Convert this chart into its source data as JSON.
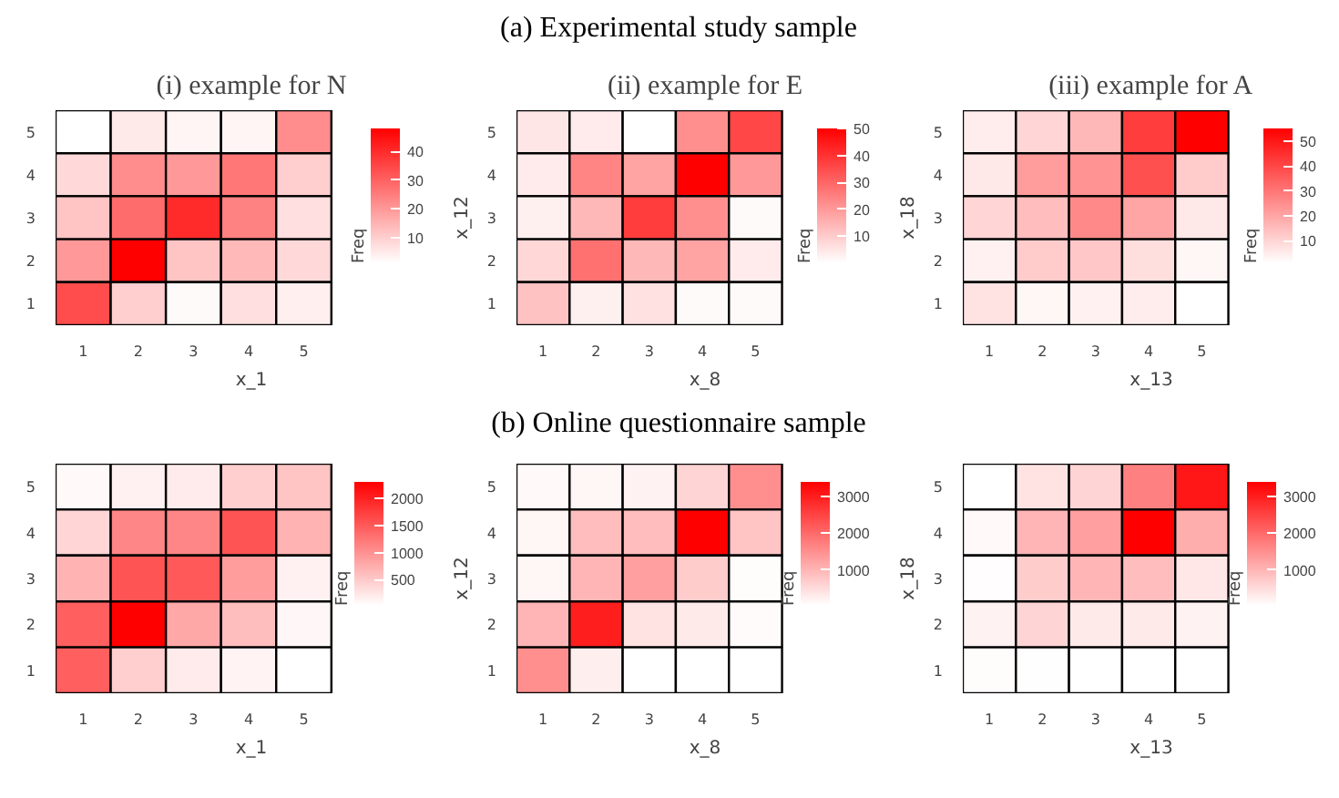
{
  "chart_data": [
    {
      "type": "heatmap",
      "title": "(i) example for N",
      "annotations": [
        "(a) Experimental study sample"
      ],
      "xlabel": "x_1",
      "clabel": "Freq",
      "categories": [
        "1",
        "2",
        "3",
        "4",
        "5"
      ],
      "y_categories": [
        "5",
        "4",
        "3",
        "2",
        "1"
      ],
      "cells": [
        [
          1,
          5,
          3,
          3,
          22
        ],
        [
          8,
          22,
          20,
          26,
          10
        ],
        [
          12,
          28,
          40,
          24,
          7
        ],
        [
          20,
          48,
          12,
          14,
          8
        ],
        [
          34,
          10,
          2,
          7,
          4
        ]
      ],
      "clim": [
        1,
        48
      ],
      "cticks": [
        10,
        20,
        30,
        40
      ]
    },
    {
      "type": "heatmap",
      "title": "(ii) example for E",
      "xlabel": "x_8",
      "ylabel": "x_12",
      "clabel": "Freq",
      "categories": [
        "1",
        "2",
        "3",
        "4",
        "5"
      ],
      "y_categories": [
        "5",
        "4",
        "3",
        "2",
        "1"
      ],
      "cells": [
        [
          5,
          4,
          0,
          22,
          36
        ],
        [
          4,
          24,
          18,
          50,
          20
        ],
        [
          3,
          14,
          38,
          22,
          1
        ],
        [
          8,
          28,
          14,
          18,
          4
        ],
        [
          12,
          3,
          6,
          1,
          1
        ]
      ],
      "clim": [
        0,
        50
      ],
      "cticks": [
        10,
        20,
        30,
        40,
        50
      ]
    },
    {
      "type": "heatmap",
      "title": "(iii) example for A",
      "xlabel": "x_13",
      "ylabel": "x_18",
      "clabel": "Freq",
      "categories": [
        "1",
        "2",
        "3",
        "4",
        "5"
      ],
      "y_categories": [
        "5",
        "4",
        "3",
        "2",
        "1"
      ],
      "cells": [
        [
          5,
          10,
          16,
          42,
          55
        ],
        [
          6,
          22,
          24,
          38,
          12
        ],
        [
          10,
          15,
          26,
          20,
          6
        ],
        [
          4,
          12,
          13,
          8,
          3
        ],
        [
          7,
          3,
          4,
          5,
          1
        ]
      ],
      "clim": [
        1,
        55
      ],
      "cticks": [
        10,
        20,
        30,
        40,
        50
      ]
    },
    {
      "type": "heatmap",
      "annotations": [
        "(b) Online questionnaire sample"
      ],
      "xlabel": "x_1",
      "clabel": "Freq",
      "categories": [
        "1",
        "2",
        "3",
        "4",
        "5"
      ],
      "y_categories": [
        "5",
        "4",
        "3",
        "2",
        "1"
      ],
      "cells": [
        [
          80,
          150,
          200,
          450,
          550
        ],
        [
          400,
          1100,
          1100,
          1550,
          700
        ],
        [
          700,
          1550,
          1500,
          900,
          150
        ],
        [
          1450,
          2300,
          800,
          600,
          100
        ],
        [
          1450,
          450,
          200,
          130,
          20
        ]
      ],
      "clim": [
        20,
        2300
      ],
      "cticks": [
        500,
        1000,
        1500,
        2000
      ]
    },
    {
      "type": "heatmap",
      "xlabel": "x_8",
      "ylabel": "x_12",
      "clabel": "Freq",
      "categories": [
        "1",
        "2",
        "3",
        "4",
        "5"
      ],
      "y_categories": [
        "5",
        "4",
        "3",
        "2",
        "1"
      ],
      "cells": [
        [
          100,
          150,
          200,
          600,
          1500
        ],
        [
          150,
          900,
          900,
          3400,
          800
        ],
        [
          150,
          1000,
          1300,
          700,
          60
        ],
        [
          1000,
          3000,
          400,
          300,
          80
        ],
        [
          1500,
          250,
          30,
          20,
          20
        ]
      ],
      "clim": [
        20,
        3400
      ],
      "cticks": [
        1000,
        2000,
        3000
      ]
    },
    {
      "type": "heatmap",
      "xlabel": "x_13",
      "ylabel": "x_18",
      "clabel": "Freq",
      "categories": [
        "1",
        "2",
        "3",
        "4",
        "5"
      ],
      "y_categories": [
        "5",
        "4",
        "3",
        "2",
        "1"
      ],
      "cells": [
        [
          30,
          400,
          600,
          1700,
          3100
        ],
        [
          100,
          1000,
          1300,
          3400,
          1100
        ],
        [
          50,
          700,
          1000,
          900,
          350
        ],
        [
          200,
          600,
          300,
          300,
          200
        ],
        [
          60,
          40,
          20,
          20,
          20
        ]
      ],
      "clim": [
        20,
        3400
      ],
      "cticks": [
        1000,
        2000,
        3000
      ]
    }
  ]
}
